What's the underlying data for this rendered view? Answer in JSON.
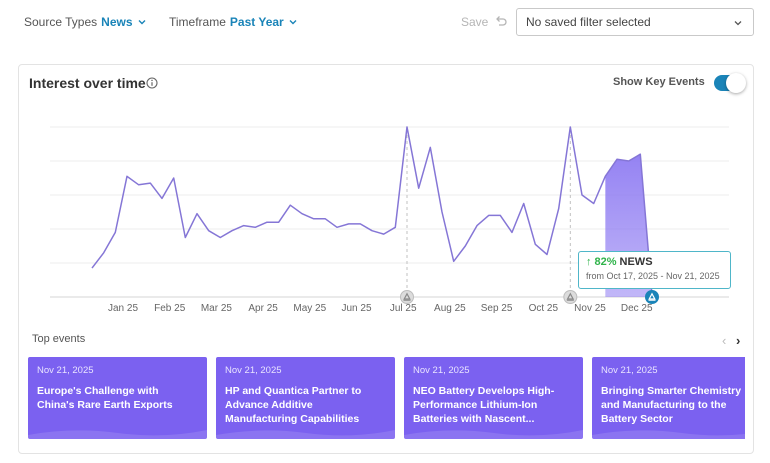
{
  "filters": {
    "source_types": {
      "label": "Source Types",
      "value": "News"
    },
    "timeframe": {
      "label": "Timeframe",
      "value": "Past Year"
    },
    "save_label": "Save",
    "saved_filter": {
      "value": "No saved filter selected"
    }
  },
  "card": {
    "title": "Interest over time",
    "key_events_label": "Show Key Events",
    "key_events_on": true
  },
  "chart_data": {
    "type": "line",
    "title": "",
    "xlabel": "",
    "ylabel": "",
    "ylim": [
      0,
      100
    ],
    "x_tick_labels": [
      "Jan 25",
      "Feb 25",
      "Mar 25",
      "Apr 25",
      "May 25",
      "Jun 25",
      "Jul 25",
      "Aug 25",
      "Sep 25",
      "Oct 25",
      "Nov 25",
      "Dec 25"
    ],
    "grid": true,
    "line_color": "#8576d6",
    "highlight_color": "#8f7cf2",
    "series": [
      {
        "values": [
          17,
          26,
          38,
          71,
          66,
          67,
          58,
          70,
          35,
          49,
          39,
          35,
          39,
          42,
          41,
          44,
          44,
          54,
          49,
          46,
          46,
          41,
          43,
          43,
          39,
          37,
          41,
          100,
          64,
          88,
          50,
          21,
          30,
          42,
          48,
          48,
          38,
          55,
          31,
          25,
          52,
          100,
          60,
          55,
          71,
          81,
          80,
          84,
          1
        ]
      }
    ],
    "highlight_range": {
      "start_index": 44,
      "end_index": 48
    },
    "key_events": [
      {
        "index": 27,
        "icon": "key-event-marker-icon"
      },
      {
        "index": 41,
        "icon": "key-event-marker-icon"
      },
      {
        "index": 48,
        "icon": "key-event-marker-icon",
        "active": true
      }
    ]
  },
  "tooltip": {
    "change": "82%",
    "source": "NEWS",
    "range": "from Oct 17, 2025 - Nov 21, 2025"
  },
  "top_events": {
    "label": "Top events",
    "items": [
      {
        "date": "Nov 21, 2025",
        "title": "Europe's Challenge with China's Rare Earth Exports"
      },
      {
        "date": "Nov 21, 2025",
        "title": "HP and Quantica Partner to Advance Additive Manufacturing Capabilities"
      },
      {
        "date": "Nov 21, 2025",
        "title": "NEO Battery Develops High-Performance Lithium-Ion Batteries with Nascent..."
      },
      {
        "date": "Nov 21, 2025",
        "title": "Bringing Smarter Chemistry and Manufacturing to the Battery Sector"
      }
    ]
  }
}
